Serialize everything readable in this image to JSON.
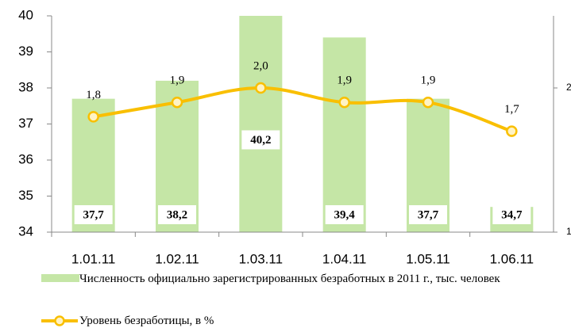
{
  "chart_data": {
    "type": "bar",
    "categories": [
      "1.01.11",
      "1.02.11",
      "1.03.11",
      "1.04.11",
      "1.05.11",
      "1.06.11"
    ],
    "series": [
      {
        "name": "Численность официально зарегистрированных безработных в 2011 г., тыс. человек",
        "type": "bar",
        "color": "#c5e6a6",
        "values": [
          37.7,
          38.2,
          40.2,
          39.4,
          37.7,
          34.7
        ],
        "value_labels": [
          "37,7",
          "38,2",
          "40,2",
          "39,4",
          "37,7",
          "34,7"
        ]
      },
      {
        "name": "Уровень безработицы, в %",
        "type": "line",
        "axis": "y2",
        "color": "#f9bf00",
        "values": [
          1.8,
          1.9,
          2.0,
          1.9,
          1.9,
          1.7
        ],
        "value_labels": [
          "1,8",
          "1,9",
          "2,0",
          "1,9",
          "1,9",
          "1,7"
        ]
      }
    ],
    "ylim": [
      34,
      40
    ],
    "yticks": [
      34,
      35,
      36,
      37,
      38,
      39,
      40
    ],
    "y2lim": [
      1,
      2.5
    ],
    "y2ticks": [
      1,
      2
    ]
  }
}
